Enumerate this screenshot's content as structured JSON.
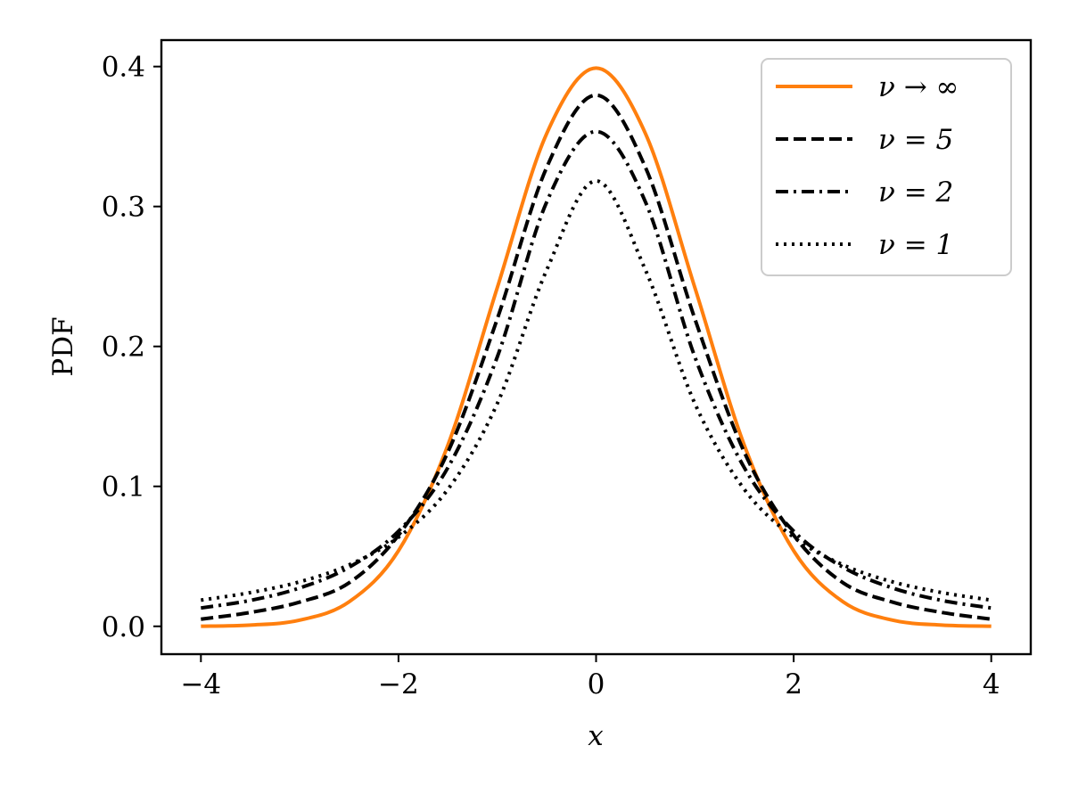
{
  "chart_data": {
    "type": "line",
    "title": "",
    "xlabel": "x",
    "ylabel": "PDF",
    "xlim": [
      -4.4,
      4.4
    ],
    "ylim": [
      -0.0199,
      0.4189
    ],
    "x_ticks": [
      -4,
      -2,
      0,
      2,
      4
    ],
    "x_tick_labels": [
      "−4",
      "−2",
      "0",
      "2",
      "4"
    ],
    "y_ticks": [
      0.0,
      0.1,
      0.2,
      0.3,
      0.4
    ],
    "y_tick_labels": [
      "0.0",
      "0.1",
      "0.2",
      "0.3",
      "0.4"
    ],
    "grid": false,
    "legend_position": "top-right",
    "x": [
      -4,
      -3.5,
      -3,
      -2.5,
      -2,
      -1.5,
      -1,
      -0.5,
      0,
      0.5,
      1,
      1.5,
      2,
      2.5,
      3,
      3.5,
      4
    ],
    "series": [
      {
        "name": "ν → ∞",
        "color": "#ff7f0e",
        "style": "solid",
        "values": [
          0.0001,
          0.0009,
          0.0044,
          0.0175,
          0.054,
          0.1295,
          0.242,
          0.3521,
          0.3989,
          0.3521,
          0.242,
          0.1295,
          0.054,
          0.0175,
          0.0044,
          0.0009,
          0.0001
        ]
      },
      {
        "name": "ν = 5",
        "color": "#000000",
        "style": "dashed",
        "values": [
          0.0051,
          0.0099,
          0.0173,
          0.0311,
          0.0651,
          0.1245,
          0.2197,
          0.3279,
          0.3796,
          0.3279,
          0.2197,
          0.1245,
          0.0651,
          0.0311,
          0.0173,
          0.0099,
          0.0051
        ]
      },
      {
        "name": "ν = 2",
        "color": "#000000",
        "style": "dashdot",
        "values": [
          0.0131,
          0.0185,
          0.0274,
          0.0422,
          0.068,
          0.1134,
          0.1925,
          0.3032,
          0.3536,
          0.3032,
          0.1925,
          0.1134,
          0.068,
          0.0422,
          0.0274,
          0.0185,
          0.0131
        ]
      },
      {
        "name": "ν = 1",
        "color": "#000000",
        "style": "dotted",
        "values": [
          0.0187,
          0.0241,
          0.0318,
          0.0439,
          0.0637,
          0.0979,
          0.1592,
          0.2546,
          0.3183,
          0.2546,
          0.1592,
          0.0979,
          0.0637,
          0.0439,
          0.0318,
          0.0241,
          0.0187
        ]
      }
    ]
  }
}
